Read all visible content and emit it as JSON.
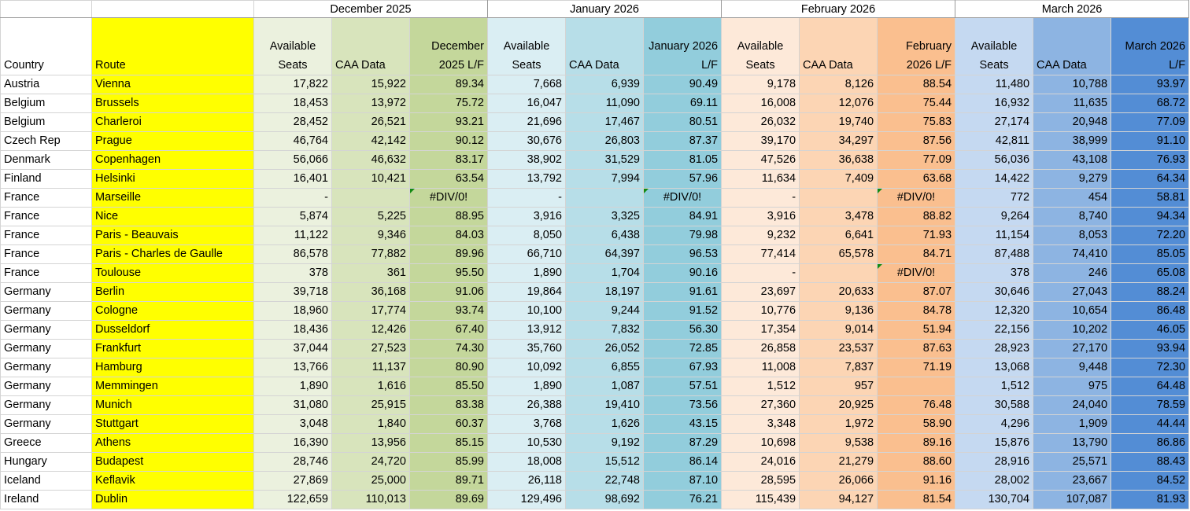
{
  "header": {
    "country": "Country",
    "route": "Route"
  },
  "months": [
    {
      "label": "December 2025",
      "columns": [
        "Available Seats",
        "CAA Data",
        "December 2025 L/F"
      ]
    },
    {
      "label": "January 2026",
      "columns": [
        "Available Seats",
        "CAA Data",
        "January 2026 L/F"
      ]
    },
    {
      "label": "February 2026",
      "columns": [
        "Available Seats",
        "CAA Data",
        "February 2026 L/F"
      ]
    },
    {
      "label": "March 2026",
      "columns": [
        "Available Seats",
        "CAA Data",
        "March 2026 L/F"
      ]
    }
  ],
  "rows": [
    [
      "Austria",
      "Vienna",
      "17,822",
      "15,922",
      "89.34",
      "7,668",
      "6,939",
      "90.49",
      "9,178",
      "8,126",
      "88.54",
      "11,480",
      "10,788",
      "93.97"
    ],
    [
      "Belgium",
      "Brussels",
      "18,453",
      "13,972",
      "75.72",
      "16,047",
      "11,090",
      "69.11",
      "16,008",
      "12,076",
      "75.44",
      "16,932",
      "11,635",
      "68.72"
    ],
    [
      "Belgium",
      "Charleroi",
      "28,452",
      "26,521",
      "93.21",
      "21,696",
      "17,467",
      "80.51",
      "26,032",
      "19,740",
      "75.83",
      "27,174",
      "20,948",
      "77.09"
    ],
    [
      "Czech Rep",
      "Prague",
      "46,764",
      "42,142",
      "90.12",
      "30,676",
      "26,803",
      "87.37",
      "39,170",
      "34,297",
      "87.56",
      "42,811",
      "38,999",
      "91.10"
    ],
    [
      "Denmark",
      "Copenhagen",
      "56,066",
      "46,632",
      "83.17",
      "38,902",
      "31,529",
      "81.05",
      "47,526",
      "36,638",
      "77.09",
      "56,036",
      "43,108",
      "76.93"
    ],
    [
      "Finland",
      "Helsinki",
      "16,401",
      "10,421",
      "63.54",
      "13,792",
      "7,994",
      "57.96",
      "11,634",
      "7,409",
      "63.68",
      "14,422",
      "9,279",
      "64.34"
    ],
    [
      "France",
      "Marseille",
      "-",
      null,
      "#DIV/0!",
      "-",
      null,
      "#DIV/0!",
      "-",
      null,
      "#DIV/0!",
      "772",
      "454",
      "58.81"
    ],
    [
      "France",
      "Nice",
      "5,874",
      "5,225",
      "88.95",
      "3,916",
      "3,325",
      "84.91",
      "3,916",
      "3,478",
      "88.82",
      "9,264",
      "8,740",
      "94.34"
    ],
    [
      "France",
      "Paris - Beauvais",
      "11,122",
      "9,346",
      "84.03",
      "8,050",
      "6,438",
      "79.98",
      "9,232",
      "6,641",
      "71.93",
      "11,154",
      "8,053",
      "72.20"
    ],
    [
      "France",
      "Paris - Charles de Gaulle",
      "86,578",
      "77,882",
      "89.96",
      "66,710",
      "64,397",
      "96.53",
      "77,414",
      "65,578",
      "84.71",
      "87,488",
      "74,410",
      "85.05"
    ],
    [
      "France",
      "Toulouse",
      "378",
      "361",
      "95.50",
      "1,890",
      "1,704",
      "90.16",
      "-",
      null,
      "#DIV/0!",
      "378",
      "246",
      "65.08"
    ],
    [
      "Germany",
      "Berlin",
      "39,718",
      "36,168",
      "91.06",
      "19,864",
      "18,197",
      "91.61",
      "23,697",
      "20,633",
      "87.07",
      "30,646",
      "27,043",
      "88.24"
    ],
    [
      "Germany",
      "Cologne",
      "18,960",
      "17,774",
      "93.74",
      "10,100",
      "9,244",
      "91.52",
      "10,776",
      "9,136",
      "84.78",
      "12,320",
      "10,654",
      "86.48"
    ],
    [
      "Germany",
      "Dusseldorf",
      "18,436",
      "12,426",
      "67.40",
      "13,912",
      "7,832",
      "56.30",
      "17,354",
      "9,014",
      "51.94",
      "22,156",
      "10,202",
      "46.05"
    ],
    [
      "Germany",
      "Frankfurt",
      "37,044",
      "27,523",
      "74.30",
      "35,760",
      "26,052",
      "72.85",
      "26,858",
      "23,537",
      "87.63",
      "28,923",
      "27,170",
      "93.94"
    ],
    [
      "Germany",
      "Hamburg",
      "13,766",
      "11,137",
      "80.90",
      "10,092",
      "6,855",
      "67.93",
      "11,008",
      "7,837",
      "71.19",
      "13,068",
      "9,448",
      "72.30"
    ],
    [
      "Germany",
      "Memmingen",
      "1,890",
      "1,616",
      "85.50",
      "1,890",
      "1,087",
      "57.51",
      "1,512",
      "957",
      null,
      "1,512",
      "975",
      "64.48"
    ],
    [
      "Germany",
      "Munich",
      "31,080",
      "25,915",
      "83.38",
      "26,388",
      "19,410",
      "73.56",
      "27,360",
      "20,925",
      "76.48",
      "30,588",
      "24,040",
      "78.59"
    ],
    [
      "Germany",
      "Stuttgart",
      "3,048",
      "1,840",
      "60.37",
      "3,768",
      "1,626",
      "43.15",
      "3,348",
      "1,972",
      "58.90",
      "4,296",
      "1,909",
      "44.44"
    ],
    [
      "Greece",
      "Athens",
      "16,390",
      "13,956",
      "85.15",
      "10,530",
      "9,192",
      "87.29",
      "10,698",
      "9,538",
      "89.16",
      "15,876",
      "13,790",
      "86.86"
    ],
    [
      "Hungary",
      "Budapest",
      "28,746",
      "24,720",
      "85.99",
      "18,008",
      "15,512",
      "86.14",
      "24,016",
      "21,279",
      "88.60",
      "28,916",
      "25,571",
      "88.43"
    ],
    [
      "Iceland",
      "Keflavik",
      "27,869",
      "25,000",
      "89.71",
      "26,118",
      "22,748",
      "87.10",
      "28,595",
      "26,066",
      "91.16",
      "28,002",
      "23,667",
      "84.52"
    ],
    [
      "Ireland",
      "Dublin",
      "122,659",
      "110,013",
      "89.69",
      "129,496",
      "98,692",
      "76.21",
      "115,439",
      "94,127",
      "81.54",
      "130,704",
      "107,087",
      "81.93"
    ]
  ]
}
